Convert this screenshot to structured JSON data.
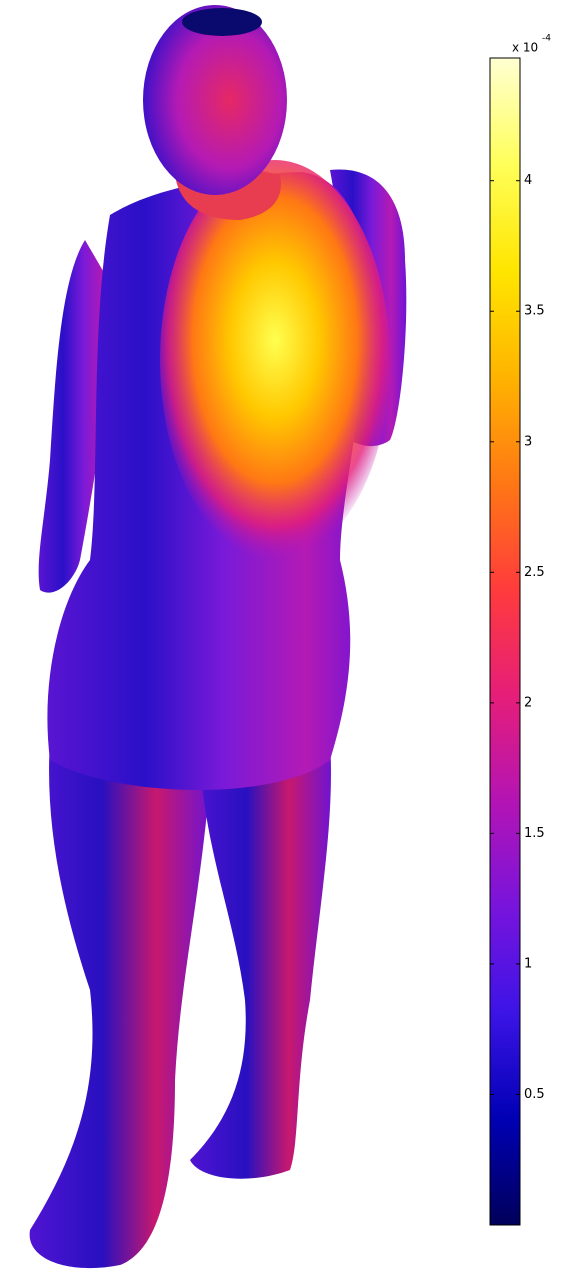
{
  "chart_data": {
    "type": "colorbar",
    "exponent_base": "x 10",
    "exponent": "-4",
    "ylim": [
      0,
      4.47
    ],
    "yticks": [
      0.5,
      1,
      1.5,
      2,
      2.5,
      3,
      3.5,
      4
    ],
    "colormap": [
      "#00005a",
      "#0000b4",
      "#3c14e6",
      "#7814dc",
      "#b414b4",
      "#e61e78",
      "#ff3c3c",
      "#ff7814",
      "#ffb400",
      "#ffe600",
      "#ffff5a",
      "#ffffd2"
    ]
  }
}
